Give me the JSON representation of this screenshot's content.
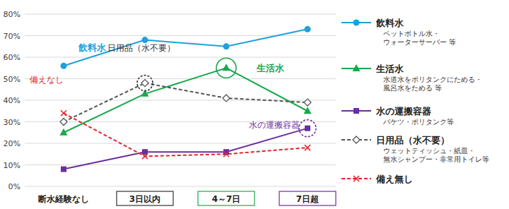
{
  "chart_data": {
    "type": "line",
    "categories": [
      "断水経験なし",
      "3日以内",
      "4～7日",
      "7日超"
    ],
    "ylim": [
      0,
      80
    ],
    "yticks": [
      {
        "value": 0,
        "label": "0%"
      },
      {
        "value": 10,
        "label": "10%"
      },
      {
        "value": 20,
        "label": "20%"
      },
      {
        "value": 30,
        "label": "30%"
      },
      {
        "value": 40,
        "label": "40%"
      },
      {
        "value": 50,
        "label": "50%"
      },
      {
        "value": 60,
        "label": "60%"
      },
      {
        "value": 70,
        "label": "70%"
      },
      {
        "value": 80,
        "label": "80%"
      }
    ],
    "grid": true,
    "legend": "right",
    "series": [
      {
        "name": "飲料水",
        "color": "#1da1de",
        "marker": "circle",
        "line_style": "solid",
        "values": [
          56,
          68,
          65,
          73
        ]
      },
      {
        "name": "生活水",
        "color": "#19a84c",
        "marker": "triangle",
        "line_style": "solid",
        "values": [
          25,
          43,
          55,
          35
        ]
      },
      {
        "name": "水の運搬容器",
        "color": "#6a2e9e",
        "marker": "square",
        "line_style": "solid",
        "values": [
          8,
          16,
          16,
          27
        ]
      },
      {
        "name": "日用品（水不要）",
        "color": "#555555",
        "marker": "diamond",
        "line_style": "dashed",
        "values": [
          30,
          48,
          41,
          39
        ]
      },
      {
        "name": "備え無し",
        "color": "#e8202a",
        "marker": "x",
        "line_style": "dashed",
        "values": [
          34,
          14,
          15,
          18
        ]
      }
    ],
    "legend_notes": [
      [
        "ペットボトル水・",
        "ウォーターサーバー 等"
      ],
      [
        "水道水をポリタンクにためる・",
        "風呂水をためる 等"
      ],
      [
        "バケツ・ポリタンク等"
      ],
      [
        "ウェットティッシュ・紙皿・",
        "無水シャンプー・非常用トイレ等"
      ],
      []
    ],
    "annotations": [
      {
        "text": "飲料水",
        "color": "#1da1de"
      },
      {
        "text": "日用品（水不要）",
        "color": "#333333"
      },
      {
        "text": "生活水",
        "color": "#19a84c"
      },
      {
        "text": "水の運搬容器",
        "color": "#6a2e9e"
      },
      {
        "text": "備えなし",
        "color": "#e8202a"
      }
    ]
  }
}
